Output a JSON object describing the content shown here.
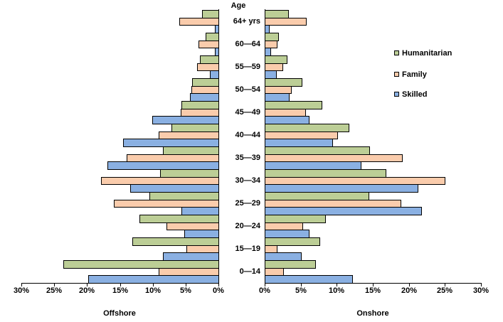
{
  "figure": {
    "age_axis_title": "Age",
    "left_panel_title": "Offshore",
    "right_panel_title": "Onshore"
  },
  "chart_data": {
    "type": "bar",
    "subtype": "back-to-back population pyramid",
    "orientation": "horizontal",
    "grid": false,
    "legend_position": "right",
    "units": "percent",
    "categories_top_to_bottom": [
      "64+ yrs",
      "60—64",
      "55—59",
      "50—54",
      "45—49",
      "40—44",
      "35—39",
      "30—34",
      "25—29",
      "20—24",
      "15—19",
      "0—14"
    ],
    "series_order_top_to_bottom": [
      "Humanitarian",
      "Family",
      "Skilled"
    ],
    "legend": [
      {
        "label": "Humanitarian",
        "color": "#BCCE96"
      },
      {
        "label": "Family",
        "color": "#FACCAC"
      },
      {
        "label": "Skilled",
        "color": "#8AB0E2"
      }
    ],
    "x_axis": {
      "min": 0,
      "max": 30,
      "tick_step": 5,
      "tick_format": "percent"
    },
    "panels": [
      {
        "name": "Offshore",
        "direction": "values increase right-to-left",
        "tick_labels": [
          "30%",
          "25%",
          "20%",
          "15%",
          "10%",
          "5%",
          "0%"
        ],
        "series": [
          {
            "name": "Humanitarian",
            "values": [
              2.5,
              2.0,
              2.8,
              4.0,
              5.6,
              7.1,
              8.5,
              8.9,
              10.5,
              12.0,
              13.1,
              23.6
            ]
          },
          {
            "name": "Family",
            "values": [
              6.0,
              3.0,
              3.3,
              4.1,
              5.7,
              9.1,
              14.0,
              17.9,
              15.9,
              7.9,
              4.9,
              9.1
            ]
          },
          {
            "name": "Skilled",
            "values": [
              0.5,
              0.5,
              1.3,
              4.3,
              10.1,
              14.5,
              16.9,
              13.4,
              5.6,
              5.2,
              8.5,
              19.8
            ]
          }
        ]
      },
      {
        "name": "Onshore",
        "direction": "values increase left-to-right",
        "tick_labels": [
          "0%",
          "5%",
          "10%",
          "15%",
          "20%",
          "25%",
          "30%"
        ],
        "series": [
          {
            "name": "Humanitarian",
            "values": [
              3.3,
              1.9,
              3.1,
              5.1,
              7.9,
              11.6,
              14.5,
              16.8,
              14.4,
              8.4,
              7.6,
              7.0
            ]
          },
          {
            "name": "Family",
            "values": [
              5.7,
              1.7,
              2.5,
              3.7,
              5.6,
              10.1,
              19.0,
              25.0,
              18.8,
              5.2,
              1.7,
              2.6
            ]
          },
          {
            "name": "Skilled",
            "values": [
              0.6,
              0.8,
              1.6,
              3.4,
              6.1,
              9.4,
              13.3,
              21.2,
              21.7,
              6.1,
              5.0,
              12.1
            ]
          }
        ]
      }
    ]
  }
}
